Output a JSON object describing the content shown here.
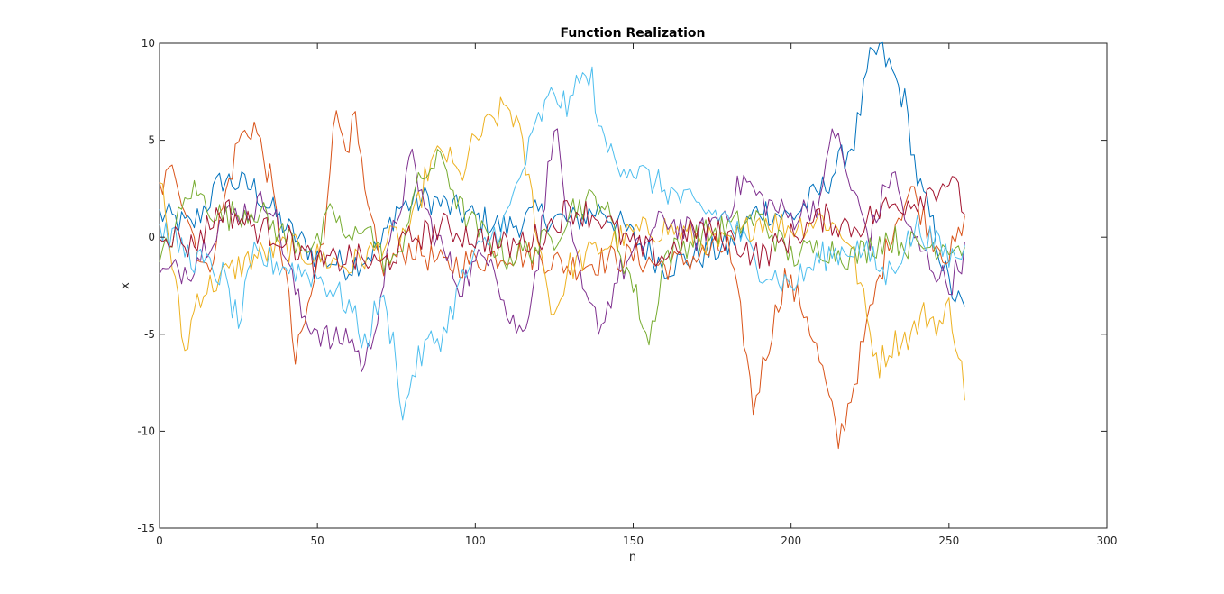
{
  "chart_data": {
    "type": "line",
    "title": "Function Realization",
    "xlabel": "n",
    "ylabel": "x",
    "xlim": [
      0,
      300
    ],
    "ylim": [
      -15,
      10
    ],
    "xticks": [
      0,
      50,
      100,
      150,
      200,
      250,
      300
    ],
    "yticks": [
      -15,
      -10,
      -5,
      0,
      5,
      10
    ],
    "xtick_labels": [
      "0",
      "50",
      "100",
      "150",
      "200",
      "250",
      "300"
    ],
    "ytick_labels": [
      "-15",
      "-10",
      "-5",
      "0",
      "5",
      "10"
    ],
    "grid": false,
    "legend": "none",
    "series": [
      {
        "color": "#0072BD",
        "points": [
          [
            0,
            1.2
          ],
          [
            10,
            0.5
          ],
          [
            20,
            3.0
          ],
          [
            30,
            2.5
          ],
          [
            40,
            0.5
          ],
          [
            50,
            -1.0
          ],
          [
            60,
            -1.5
          ],
          [
            70,
            -0.5
          ],
          [
            75,
            1.5
          ],
          [
            85,
            2.0
          ],
          [
            100,
            1.0
          ],
          [
            110,
            0.5
          ],
          [
            120,
            1.2
          ],
          [
            130,
            0.8
          ],
          [
            140,
            1.5
          ],
          [
            150,
            0.0
          ],
          [
            160,
            -1.5
          ],
          [
            170,
            -1.0
          ],
          [
            180,
            -0.5
          ],
          [
            190,
            1.5
          ],
          [
            200,
            1.0
          ],
          [
            210,
            2.5
          ],
          [
            220,
            5.0
          ],
          [
            225,
            9.0
          ],
          [
            228,
            9.7
          ],
          [
            232,
            8.5
          ],
          [
            236,
            7.0
          ],
          [
            240,
            3.0
          ],
          [
            245,
            0.5
          ],
          [
            250,
            -2.5
          ],
          [
            255,
            -3.9
          ]
        ]
      },
      {
        "color": "#D95319",
        "points": [
          [
            0,
            2.5
          ],
          [
            5,
            3.5
          ],
          [
            10,
            0.5
          ],
          [
            15,
            -2.0
          ],
          [
            20,
            1.5
          ],
          [
            25,
            5.0
          ],
          [
            30,
            5.8
          ],
          [
            35,
            3.0
          ],
          [
            40,
            -2.0
          ],
          [
            43,
            -6.5
          ],
          [
            48,
            -3.0
          ],
          [
            52,
            0.0
          ],
          [
            55,
            6.2
          ],
          [
            60,
            5.0
          ],
          [
            62,
            6.0
          ],
          [
            65,
            2.0
          ],
          [
            70,
            -1.5
          ],
          [
            80,
            -0.5
          ],
          [
            90,
            -1.5
          ],
          [
            100,
            -1.2
          ],
          [
            110,
            -0.8
          ],
          [
            120,
            -1.0
          ],
          [
            130,
            -1.5
          ],
          [
            140,
            -1.2
          ],
          [
            150,
            -1.0
          ],
          [
            160,
            -1.5
          ],
          [
            170,
            -1.0
          ],
          [
            180,
            -0.5
          ],
          [
            185,
            -5.0
          ],
          [
            188,
            -8.8
          ],
          [
            192,
            -6.0
          ],
          [
            198,
            -2.0
          ],
          [
            205,
            -4.0
          ],
          [
            210,
            -7.0
          ],
          [
            215,
            -10.6
          ],
          [
            220,
            -7.5
          ],
          [
            225,
            -4.0
          ],
          [
            232,
            0.5
          ],
          [
            238,
            2.5
          ],
          [
            245,
            0.0
          ],
          [
            250,
            -1.0
          ],
          [
            255,
            0.5
          ]
        ]
      },
      {
        "color": "#EDB120",
        "points": [
          [
            0,
            3.5
          ],
          [
            5,
            -2.5
          ],
          [
            8,
            -6.0
          ],
          [
            12,
            -3.0
          ],
          [
            20,
            -2.0
          ],
          [
            30,
            -1.0
          ],
          [
            40,
            -0.5
          ],
          [
            50,
            -1.0
          ],
          [
            60,
            -1.5
          ],
          [
            70,
            -0.5
          ],
          [
            80,
            0.5
          ],
          [
            85,
            3.5
          ],
          [
            90,
            4.5
          ],
          [
            95,
            3.0
          ],
          [
            100,
            5.0
          ],
          [
            110,
            6.8
          ],
          [
            113,
            6.0
          ],
          [
            118,
            2.0
          ],
          [
            122,
            -2.0
          ],
          [
            125,
            -4.0
          ],
          [
            130,
            -1.5
          ],
          [
            140,
            -0.5
          ],
          [
            150,
            0.2
          ],
          [
            160,
            0.5
          ],
          [
            170,
            0.0
          ],
          [
            180,
            -0.5
          ],
          [
            190,
            1.0
          ],
          [
            200,
            0.5
          ],
          [
            210,
            1.0
          ],
          [
            218,
            0.0
          ],
          [
            222,
            -2.5
          ],
          [
            225,
            -5.0
          ],
          [
            228,
            -6.5
          ],
          [
            232,
            -5.5
          ],
          [
            238,
            -5.0
          ],
          [
            242,
            -4.0
          ],
          [
            248,
            -4.5
          ],
          [
            250,
            -3.5
          ],
          [
            252,
            -5.0
          ],
          [
            255,
            -7.9
          ]
        ]
      },
      {
        "color": "#7E2F8E",
        "points": [
          [
            0,
            -2.0
          ],
          [
            10,
            -1.5
          ],
          [
            20,
            1.0
          ],
          [
            30,
            1.5
          ],
          [
            35,
            2.0
          ],
          [
            40,
            -1.0
          ],
          [
            45,
            -4.0
          ],
          [
            55,
            -5.5
          ],
          [
            60,
            -5.0
          ],
          [
            65,
            -6.8
          ],
          [
            70,
            -3.0
          ],
          [
            75,
            1.0
          ],
          [
            80,
            4.0
          ],
          [
            85,
            1.0
          ],
          [
            95,
            -2.5
          ],
          [
            100,
            -1.5
          ],
          [
            105,
            -0.5
          ],
          [
            110,
            -4.0
          ],
          [
            115,
            -5.0
          ],
          [
            120,
            -1.0
          ],
          [
            125,
            6.2
          ],
          [
            130,
            0.0
          ],
          [
            135,
            -3.5
          ],
          [
            140,
            -4.5
          ],
          [
            145,
            -2.0
          ],
          [
            150,
            -1.0
          ],
          [
            160,
            1.0
          ],
          [
            170,
            0.0
          ],
          [
            180,
            1.5
          ],
          [
            185,
            3.0
          ],
          [
            190,
            2.0
          ],
          [
            200,
            1.0
          ],
          [
            210,
            2.0
          ],
          [
            213,
            6.0
          ],
          [
            218,
            3.0
          ],
          [
            225,
            0.0
          ],
          [
            232,
            3.5
          ],
          [
            238,
            0.0
          ],
          [
            245,
            -1.5
          ],
          [
            250,
            -2.5
          ],
          [
            255,
            -0.8
          ]
        ]
      },
      {
        "color": "#77AC30",
        "points": [
          [
            0,
            -1.5
          ],
          [
            10,
            2.5
          ],
          [
            20,
            1.0
          ],
          [
            30,
            1.5
          ],
          [
            40,
            0.0
          ],
          [
            50,
            -0.5
          ],
          [
            55,
            1.5
          ],
          [
            60,
            -0.5
          ],
          [
            65,
            1.0
          ],
          [
            70,
            -1.0
          ],
          [
            75,
            -1.5
          ],
          [
            80,
            2.0
          ],
          [
            85,
            3.5
          ],
          [
            90,
            4.0
          ],
          [
            95,
            1.5
          ],
          [
            100,
            0.5
          ],
          [
            110,
            -1.0
          ],
          [
            120,
            -0.5
          ],
          [
            125,
            0.0
          ],
          [
            130,
            1.5
          ],
          [
            140,
            2.0
          ],
          [
            150,
            -2.5
          ],
          [
            155,
            -5.5
          ],
          [
            160,
            -1.0
          ],
          [
            170,
            0.0
          ],
          [
            180,
            0.5
          ],
          [
            190,
            1.0
          ],
          [
            200,
            -1.0
          ],
          [
            210,
            -0.5
          ],
          [
            220,
            -1.0
          ],
          [
            225,
            -0.5
          ],
          [
            230,
            0.0
          ],
          [
            240,
            -0.5
          ],
          [
            250,
            -0.3
          ],
          [
            255,
            -0.5
          ]
        ]
      },
      {
        "color": "#4DBEEE",
        "points": [
          [
            0,
            0.5
          ],
          [
            10,
            -1.0
          ],
          [
            20,
            -2.0
          ],
          [
            25,
            -4.5
          ],
          [
            30,
            -1.0
          ],
          [
            40,
            -1.5
          ],
          [
            50,
            -2.0
          ],
          [
            60,
            -3.5
          ],
          [
            65,
            -5.5
          ],
          [
            70,
            -3.0
          ],
          [
            75,
            -6.0
          ],
          [
            77,
            -9.6
          ],
          [
            80,
            -7.0
          ],
          [
            85,
            -5.5
          ],
          [
            90,
            -5.0
          ],
          [
            95,
            -2.5
          ],
          [
            100,
            -1.0
          ],
          [
            110,
            1.0
          ],
          [
            115,
            3.5
          ],
          [
            120,
            6.0
          ],
          [
            125,
            7.5
          ],
          [
            130,
            6.5
          ],
          [
            133,
            8.7
          ],
          [
            135,
            7.8
          ],
          [
            137,
            8.2
          ],
          [
            140,
            5.0
          ],
          [
            145,
            4.0
          ],
          [
            150,
            3.5
          ],
          [
            160,
            2.5
          ],
          [
            170,
            1.5
          ],
          [
            180,
            1.0
          ],
          [
            190,
            -1.5
          ],
          [
            200,
            -2.5
          ],
          [
            210,
            -1.0
          ],
          [
            220,
            -0.5
          ],
          [
            225,
            -1.0
          ],
          [
            230,
            -2.0
          ],
          [
            240,
            0.5
          ],
          [
            250,
            -1.0
          ],
          [
            255,
            -0.8
          ]
        ]
      },
      {
        "color": "#A2142F",
        "points": [
          [
            0,
            0.5
          ],
          [
            10,
            -0.5
          ],
          [
            20,
            1.5
          ],
          [
            30,
            0.5
          ],
          [
            40,
            0.0
          ],
          [
            50,
            -1.5
          ],
          [
            60,
            -1.0
          ],
          [
            70,
            -1.5
          ],
          [
            80,
            0.0
          ],
          [
            90,
            0.5
          ],
          [
            100,
            0.0
          ],
          [
            110,
            -0.5
          ],
          [
            120,
            0.0
          ],
          [
            130,
            1.5
          ],
          [
            140,
            1.0
          ],
          [
            150,
            -0.5
          ],
          [
            160,
            -1.0
          ],
          [
            170,
            0.5
          ],
          [
            180,
            0.0
          ],
          [
            190,
            -1.0
          ],
          [
            200,
            0.0
          ],
          [
            210,
            1.0
          ],
          [
            220,
            0.5
          ],
          [
            230,
            1.5
          ],
          [
            240,
            2.0
          ],
          [
            250,
            3.0
          ],
          [
            255,
            1.5
          ]
        ]
      }
    ]
  }
}
